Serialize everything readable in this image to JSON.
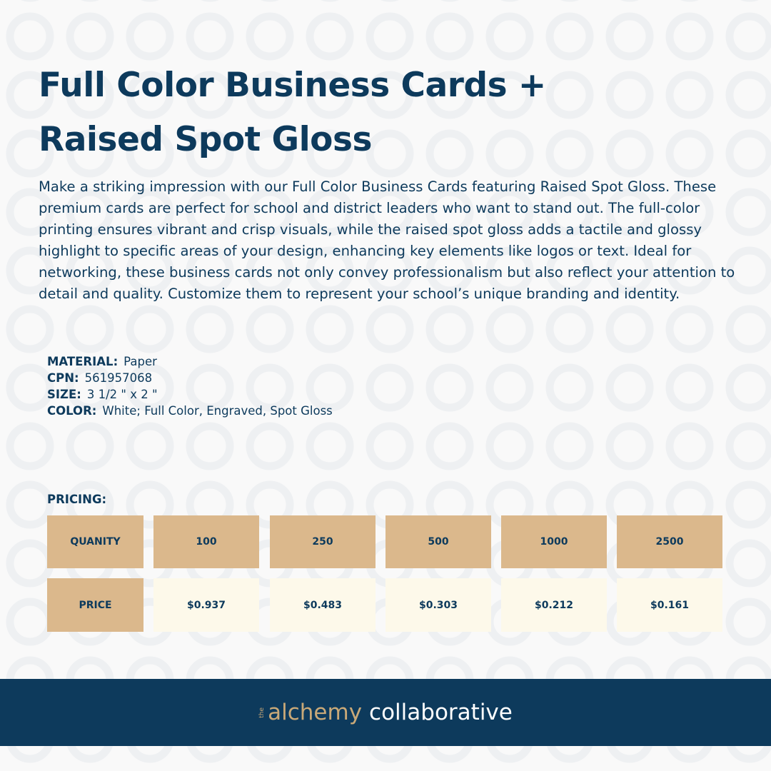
{
  "header": {
    "title": "Full Color Business Cards + Raised Spot Gloss"
  },
  "description": "Make a striking impression with our Full Color Business Cards featuring Raised Spot Gloss. These premium cards are perfect for school and district leaders who want to stand out. The full-color printing ensures vibrant and crisp visuals, while the raised spot gloss adds a tactile and glossy highlight to specific areas of your design, enhancing key elements like logos or text. Ideal for networking, these business cards not only convey professionalism but also reflect your attention to detail and quality. Customize them to represent your school’s unique branding and identity.",
  "specs": [
    {
      "label": "MATERIAL:",
      "value": "Paper"
    },
    {
      "label": "CPN:",
      "value": "561957068"
    },
    {
      "label": "SIZE:",
      "value": "3 1/2 \" x 2 \""
    },
    {
      "label": "COLOR:",
      "value": "White; Full Color, Engraved, Spot Gloss"
    }
  ],
  "pricing": {
    "label": "PRICING:",
    "rows": [
      [
        "QUANITY",
        "100",
        "250",
        "500",
        "1000",
        "2500"
      ],
      [
        "PRICE",
        "$0.937",
        "$0.483",
        "$0.303",
        "$0.212",
        "$0.161"
      ]
    ]
  },
  "footer": {
    "small": "the",
    "brand": "alchemy",
    "rest": "collaborative"
  }
}
